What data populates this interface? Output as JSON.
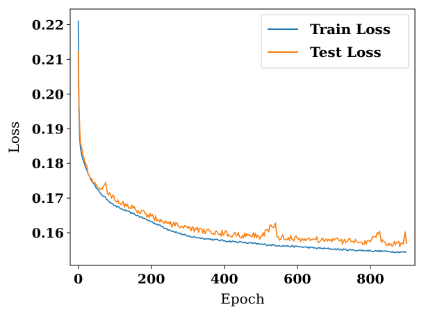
{
  "chart_data": {
    "type": "line",
    "title": "",
    "xlabel": "Epoch",
    "ylabel": "Loss",
    "xlim": [
      -22,
      922
    ],
    "ylim": [
      0.1506,
      0.2245
    ],
    "xticks": [
      0,
      200,
      400,
      600,
      800
    ],
    "xtick_labels": [
      "0",
      "200",
      "400",
      "600",
      "800"
    ],
    "yticks": [
      0.16,
      0.17,
      0.18,
      0.19,
      0.2,
      0.21,
      0.22
    ],
    "ytick_labels": [
      "0.16",
      "0.17",
      "0.18",
      "0.19",
      "0.20",
      "0.21",
      "0.22"
    ],
    "grid": false,
    "legend": {
      "placement": "top-right"
    },
    "series": [
      {
        "name": "Train Loss",
        "color": "#1f77b4",
        "x": [
          0,
          2,
          4,
          6,
          8,
          10,
          15,
          20,
          30,
          40,
          50,
          60,
          80,
          100,
          120,
          150,
          200,
          250,
          300,
          350,
          400,
          450,
          500,
          550,
          600,
          650,
          700,
          750,
          800,
          850,
          899
        ],
        "y": [
          0.2212,
          0.195,
          0.187,
          0.1845,
          0.1832,
          0.1822,
          0.1805,
          0.1788,
          0.1765,
          0.1745,
          0.1728,
          0.1715,
          0.1695,
          0.1678,
          0.1668,
          0.1655,
          0.1632,
          0.1608,
          0.159,
          0.1583,
          0.1577,
          0.1572,
          0.1567,
          0.1563,
          0.156,
          0.1556,
          0.1553,
          0.155,
          0.1548,
          0.1546,
          0.1544
        ]
      },
      {
        "name": "Test Loss",
        "color": "#ff7f0e",
        "x": [
          0,
          1,
          2,
          4,
          6,
          8,
          10,
          15,
          20,
          30,
          40,
          50,
          60,
          75,
          80,
          100,
          120,
          150,
          200,
          250,
          300,
          350,
          400,
          450,
          500,
          540,
          545,
          600,
          650,
          700,
          750,
          800,
          825,
          830,
          850,
          890,
          895,
          899
        ],
        "y": [
          0.2125,
          0.2,
          0.198,
          0.19,
          0.186,
          0.185,
          0.1845,
          0.182,
          0.18,
          0.1765,
          0.1745,
          0.1735,
          0.1725,
          0.1745,
          0.1715,
          0.1695,
          0.1685,
          0.167,
          0.1648,
          0.1625,
          0.1612,
          0.1605,
          0.1598,
          0.1593,
          0.159,
          0.1628,
          0.1588,
          0.1583,
          0.158,
          0.1578,
          0.1575,
          0.1573,
          0.1605,
          0.1572,
          0.157,
          0.1568,
          0.1603,
          0.1568
        ]
      }
    ]
  }
}
